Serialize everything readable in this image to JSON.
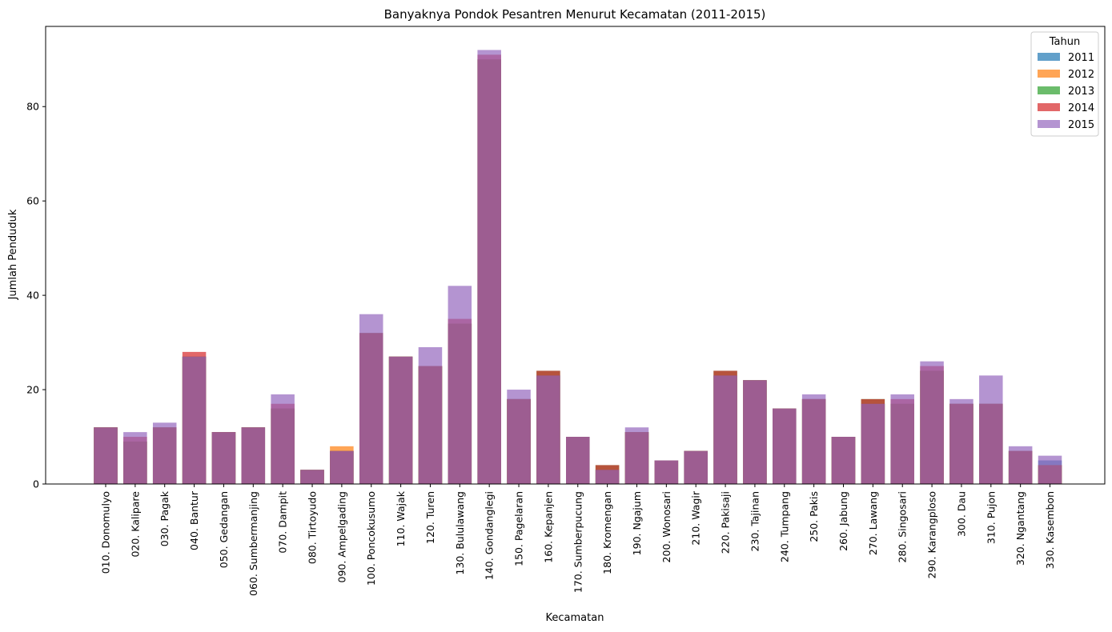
{
  "chart_data": {
    "type": "bar",
    "title": "Banyaknya Pondok Pesantren Menurut Kecamatan (2011-2015)",
    "xlabel": "Kecamatan",
    "ylabel": "Jumlah Penduduk",
    "ylim": [
      0,
      97
    ],
    "yticks": [
      0,
      20,
      40,
      60,
      80
    ],
    "grid": false,
    "legend": {
      "title": "Tahun",
      "position": "top-right"
    },
    "overlay": true,
    "categories": [
      "010. Donomulyo",
      "020. Kalipare",
      "030. Pagak",
      "040. Bantur",
      "050. Gedangan",
      "060. Sumbermanjing",
      "070. Dampit",
      "080. Tirtoyudo",
      "090. Ampelgading",
      "100. Poncokusumo",
      "110. Wajak",
      "120. Turen",
      "130. Bululawang",
      "140. Gondanglegi",
      "150. Pagelaran",
      "160. Kepanjen",
      "170. Sumberpucung",
      "180. Kromengan",
      "190. Ngajum",
      "200. Wonosari",
      "210. Wagir",
      "220. Pakisaji",
      "230. Tajinan",
      "240. Tumpang",
      "250. Pakis",
      "260. Jabung",
      "270. Lawang",
      "280. Singosari",
      "290. Karangploso",
      "300. Dau",
      "310. Pujon",
      "320. Ngantang",
      "330. Kasembon"
    ],
    "series": [
      {
        "name": "2011",
        "color": "#1f77b4",
        "values": [
          12,
          9,
          12,
          27,
          11,
          12,
          16,
          3,
          7,
          32,
          27,
          25,
          34,
          90,
          18,
          23,
          10,
          3,
          11,
          5,
          7,
          23,
          22,
          16,
          18,
          10,
          17,
          17,
          24,
          17,
          17,
          7,
          5
        ]
      },
      {
        "name": "2012",
        "color": "#ff7f0e",
        "values": [
          12,
          9,
          12,
          27,
          11,
          12,
          16,
          3,
          8,
          32,
          27,
          25,
          34,
          90,
          18,
          23,
          10,
          3,
          11,
          5,
          7,
          23,
          22,
          16,
          18,
          10,
          17,
          17,
          24,
          17,
          17,
          7,
          4
        ]
      },
      {
        "name": "2013",
        "color": "#2ca02c",
        "values": [
          12,
          9,
          12,
          27,
          11,
          12,
          16,
          3,
          7,
          32,
          27,
          25,
          34,
          90,
          18,
          24,
          10,
          4,
          11,
          5,
          7,
          24,
          22,
          16,
          18,
          10,
          18,
          17,
          24,
          17,
          17,
          7,
          4
        ]
      },
      {
        "name": "2014",
        "color": "#d62728",
        "values": [
          12,
          10,
          12,
          28,
          11,
          12,
          17,
          3,
          7,
          32,
          27,
          25,
          35,
          91,
          18,
          24,
          10,
          4,
          11,
          5,
          7,
          24,
          22,
          16,
          18,
          10,
          18,
          18,
          25,
          17,
          17,
          7,
          4
        ]
      },
      {
        "name": "2015",
        "color": "#9467bd",
        "values": [
          12,
          11,
          13,
          27,
          11,
          12,
          19,
          3,
          7,
          36,
          27,
          29,
          42,
          92,
          20,
          23,
          10,
          3,
          12,
          5,
          7,
          23,
          22,
          16,
          19,
          10,
          17,
          19,
          26,
          18,
          23,
          8,
          6
        ]
      }
    ]
  }
}
